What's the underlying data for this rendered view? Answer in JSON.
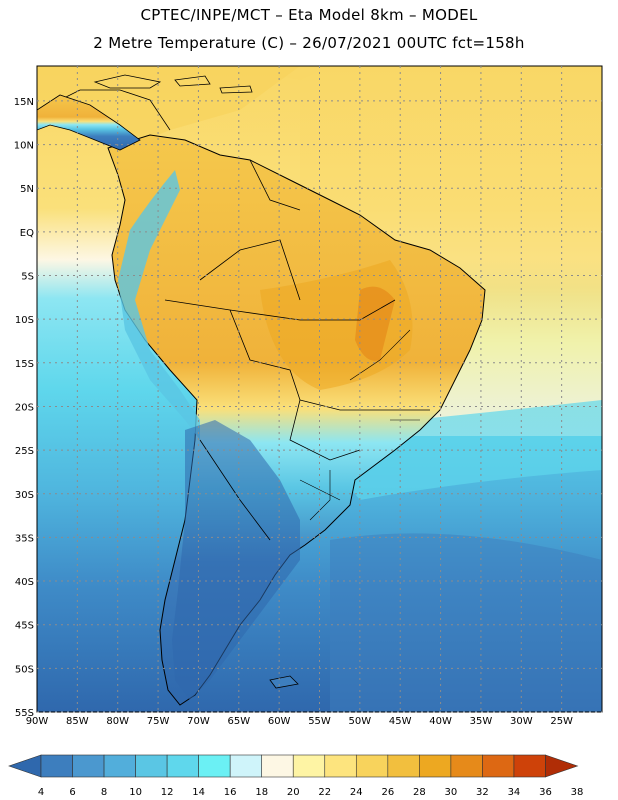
{
  "header": {
    "line1": "CPTEC/INPE/MCT –  Eta Model 8km – MODEL",
    "line2": "2 Metre Temperature (C) – 26/07/2021 00UTC fct=158h"
  },
  "map": {
    "lat_labels": [
      "15N",
      "10N",
      "5N",
      "EQ",
      "5S",
      "10S",
      "15S",
      "20S",
      "25S",
      "30S",
      "35S",
      "40S",
      "45S",
      "50S",
      "55S"
    ],
    "lon_labels": [
      "90W",
      "85W",
      "80W",
      "75W",
      "70W",
      "65W",
      "60W",
      "55W",
      "50W",
      "45W",
      "40W",
      "35W",
      "30W",
      "25W"
    ],
    "lon_range": [
      -90,
      -20
    ],
    "lat_range": [
      -55,
      19
    ],
    "grid": "dotted"
  },
  "colorbar": {
    "labels": [
      "4",
      "6",
      "8",
      "10",
      "12",
      "14",
      "16",
      "18",
      "20",
      "22",
      "24",
      "26",
      "28",
      "30",
      "32",
      "34",
      "36",
      "38"
    ],
    "colors": [
      "#2F68AD",
      "#3D7EBE",
      "#4B98CF",
      "#52AEDB",
      "#5AC6E4",
      "#5FD7EC",
      "#6BF0F4",
      "#CFF4FA",
      "#FDF7E4",
      "#FEF4A4",
      "#FDE47E",
      "#F8D35C",
      "#F2BF3E",
      "#EDA821",
      "#E68A1A",
      "#DD6813",
      "#CE4209",
      "#B02D06"
    ]
  }
}
